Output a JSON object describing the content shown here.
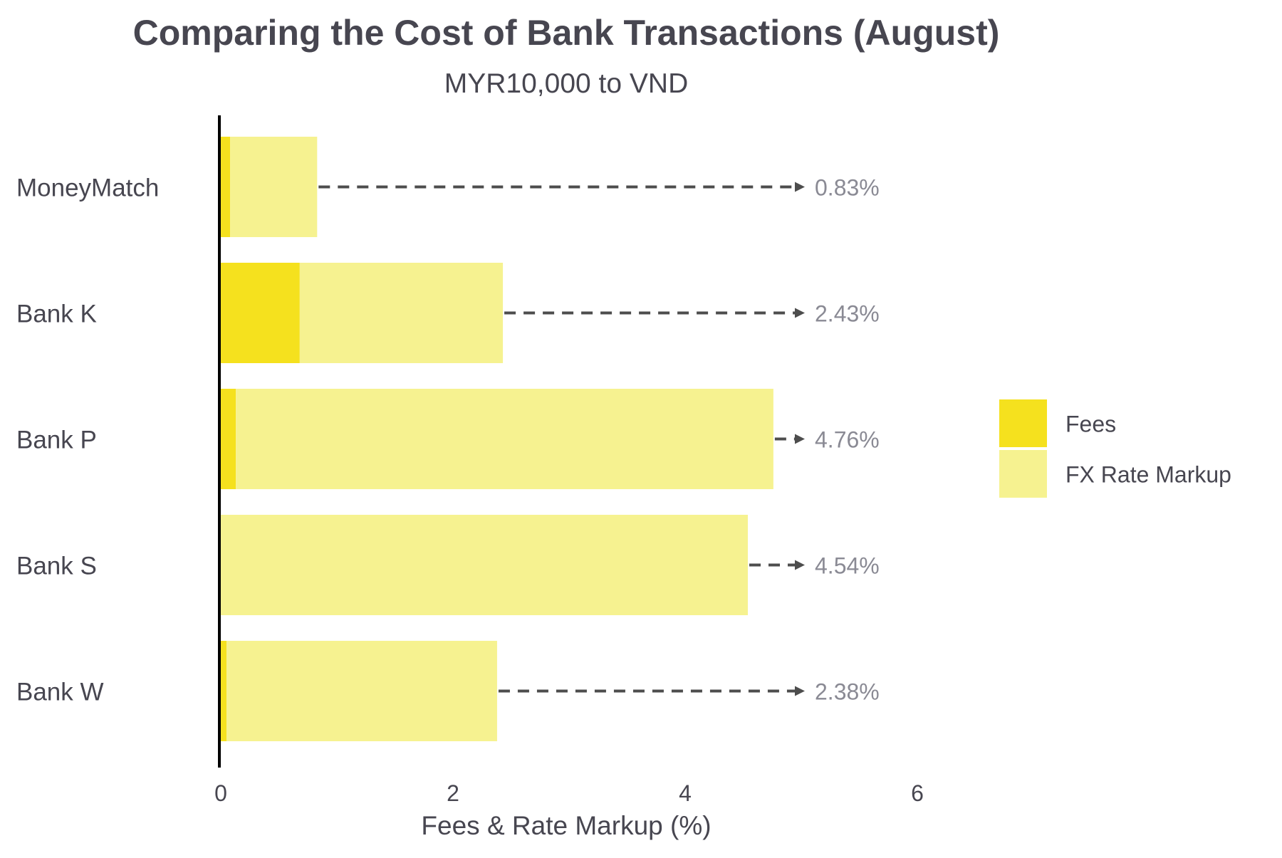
{
  "chart_data": {
    "type": "bar",
    "orientation": "horizontal",
    "stacked": true,
    "title": "Comparing the Cost of Bank Transactions (August)",
    "subtitle": "MYR10,000 to VND",
    "xlabel": "Fees & Rate Markup (%)",
    "ylabel": "",
    "xlim": [
      0,
      6
    ],
    "x_ticks": [
      0,
      2,
      4,
      6
    ],
    "categories": [
      "MoneyMatch",
      "Bank K",
      "Bank P",
      "Bank S",
      "Bank W"
    ],
    "series": [
      {
        "name": "Fees",
        "color": "#f5e11e",
        "values": [
          0.08,
          0.68,
          0.13,
          0.0,
          0.05
        ]
      },
      {
        "name": "FX Rate Markup",
        "color": "#f6f290",
        "values": [
          0.75,
          1.75,
          4.63,
          4.54,
          2.33
        ]
      }
    ],
    "totals": [
      0.83,
      2.43,
      4.76,
      4.54,
      2.38
    ],
    "total_labels": [
      "0.83%",
      "2.43%",
      "4.76%",
      "4.54%",
      "2.38%"
    ],
    "annotation_arrow_target": 5.0,
    "legend": {
      "placement": "right",
      "entries": [
        "Fees",
        "FX Rate Markup"
      ]
    },
    "grid": false,
    "colors": {
      "text": "#474650",
      "total_label": "#8a8a94",
      "arrow": "#4d4d4d",
      "axis": "#000000"
    }
  }
}
